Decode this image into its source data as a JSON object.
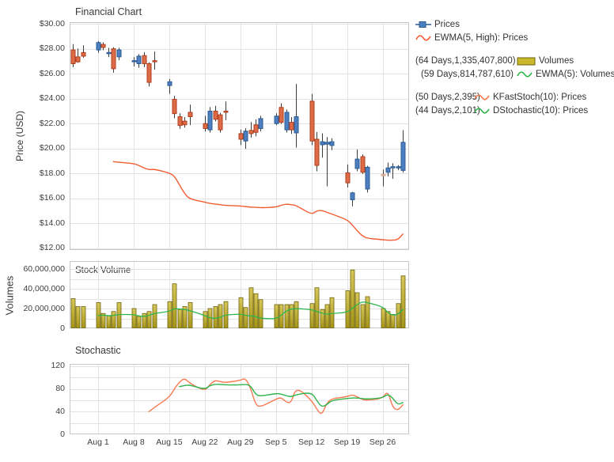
{
  "page_title": "Financial Chart",
  "colors": {
    "candle_up_fill": "#4d7ebf",
    "candle_up_stroke": "#2b5c94",
    "candle_down_fill": "#de6b48",
    "candle_down_stroke": "#b13f1d",
    "candle_pale_fill": "#f0c8b8",
    "candle_pale_stroke": "#dfa28c",
    "wick": "#3c3c3c",
    "ewma_price_line": "#f25c33",
    "kfast_line": "#f87a52",
    "green_line": "#2db54c",
    "bar_fill_top": "#d6c75a",
    "bar_fill_bottom": "#a59417",
    "bar_stroke": "#6e620c",
    "grid": "#e4e4e4",
    "panel_border": "#c8c8c8",
    "text": "#3e3e3e"
  },
  "legend": {
    "rows": [
      {
        "prefix": "",
        "icon": "candlestick-icon",
        "label": "Prices",
        "color": "#4d7ebf",
        "group": 1,
        "gap_before": false
      },
      {
        "prefix": "",
        "icon": "wave-icon",
        "label": "EWMA(5, High): Prices",
        "color": "#f25c33",
        "group": 1,
        "gap_before": false
      },
      {
        "prefix": "(64 Days,1,335,407,800)",
        "icon": "bar-icon",
        "label": "Volumes",
        "color": "#c9b82b",
        "group": 2,
        "gap_before": true
      },
      {
        "prefix": "(59 Days,814,787,610)",
        "icon": "wave-icon",
        "label": "EWMA(5): Volumes",
        "color": "#2db54c",
        "group": 2,
        "gap_before": false
      },
      {
        "prefix": "(50 Days,2,395)",
        "icon": "wave-icon",
        "label": "KFastStoch(10): Prices",
        "color": "#f87a52",
        "group": 3,
        "gap_before": true
      },
      {
        "prefix": "(44 Days,2,101)",
        "icon": "wave-icon",
        "label": "DStochastic(10): Prices",
        "color": "#2db54c",
        "group": 3,
        "gap_before": false
      }
    ]
  },
  "x_axis": {
    "day_span": 67,
    "week_gridline_offsets": [
      5,
      12,
      19,
      26,
      33,
      40,
      47,
      54,
      61
    ],
    "tick_labels": [
      "Aug 1",
      "Aug 8",
      "Aug 15",
      "Aug 22",
      "Aug 29",
      "Sep 5",
      "Sep 12",
      "Sep 19",
      "Sep 26"
    ]
  },
  "chart_data": [
    {
      "type": "candlestick",
      "title": "Financial Chart",
      "ylabel": "Price (USD)",
      "ylim": [
        11.87,
        30.13
      ],
      "grid_step": 2,
      "tick_values": [
        12,
        14,
        16,
        18,
        20,
        22,
        24,
        26,
        28,
        30
      ],
      "tick_labels": [
        "$12.00",
        "$14.00",
        "$16.00",
        "$18.00",
        "$20.00",
        "$22.00",
        "$24.00",
        "$26.00",
        "$28.00",
        "$30.00"
      ],
      "series_names": [
        "Prices",
        "EWMA(5, High): Prices"
      ],
      "candles_format": [
        "day_offset",
        "open",
        "high",
        "low",
        "close",
        "optional_pale_flag"
      ],
      "candles": [
        [
          0,
          27.9,
          28.35,
          26.55,
          26.8
        ],
        [
          1,
          27.35,
          28.0,
          26.9,
          26.95
        ],
        [
          2,
          27.7,
          28.25,
          27.3,
          27.4
        ],
        [
          5,
          27.9,
          28.6,
          27.7,
          28.5
        ],
        [
          6,
          28.35,
          28.5,
          27.9,
          28.1
        ],
        [
          7,
          27.65,
          28.05,
          27.35,
          27.7
        ],
        [
          8,
          28.0,
          28.1,
          26.1,
          26.4
        ],
        [
          9,
          27.35,
          28.05,
          27.1,
          27.9
        ],
        [
          12,
          26.95,
          27.3,
          26.6,
          27.05
        ],
        [
          13,
          26.8,
          27.55,
          26.5,
          27.4
        ],
        [
          14,
          27.45,
          27.7,
          26.55,
          26.8
        ],
        [
          15,
          26.8,
          26.9,
          25.0,
          25.3
        ],
        [
          16,
          27.05,
          27.75,
          26.35,
          27.0
        ],
        [
          19,
          25.05,
          25.55,
          24.4,
          25.35
        ],
        [
          20,
          23.95,
          24.2,
          22.45,
          22.8
        ],
        [
          21,
          22.55,
          22.8,
          21.6,
          21.85
        ],
        [
          22,
          22.2,
          22.5,
          21.7,
          21.9
        ],
        [
          23,
          22.9,
          23.5,
          21.9,
          22.55
        ],
        [
          26,
          22.0,
          22.6,
          21.4,
          21.6
        ],
        [
          27,
          21.5,
          23.3,
          21.3,
          23.0
        ],
        [
          28,
          23.0,
          23.4,
          22.2,
          22.35
        ],
        [
          29,
          22.7,
          22.85,
          21.3,
          21.5
        ],
        [
          30,
          23.0,
          23.75,
          22.3,
          22.95
        ],
        [
          33,
          21.2,
          21.5,
          20.3,
          20.75
        ],
        [
          34,
          20.6,
          21.6,
          20.0,
          21.4
        ],
        [
          35,
          21.45,
          22.1,
          20.9,
          21.2
        ],
        [
          36,
          21.9,
          22.3,
          21.0,
          21.3
        ],
        [
          37,
          21.6,
          22.6,
          21.4,
          22.4
        ],
        [
          40,
          22.0,
          22.8,
          21.9,
          22.6
        ],
        [
          41,
          23.3,
          23.6,
          22.0,
          22.1
        ],
        [
          42,
          21.5,
          23.1,
          21.3,
          22.9
        ],
        [
          43,
          22.1,
          22.5,
          21.2,
          21.5
        ],
        [
          44,
          21.25,
          25.15,
          20.1,
          22.55
        ],
        [
          47,
          23.8,
          24.35,
          20.3,
          20.6
        ],
        [
          48,
          20.75,
          21.3,
          18.2,
          18.65
        ],
        [
          49,
          20.3,
          21.2,
          19.3,
          20.55
        ],
        [
          50,
          20.35,
          20.9,
          17.0,
          20.5
        ],
        [
          51,
          20.25,
          20.8,
          19.9,
          20.55
        ],
        [
          54,
          18.05,
          18.7,
          16.9,
          17.25
        ],
        [
          55,
          15.9,
          16.5,
          15.4,
          16.45
        ],
        [
          56,
          18.4,
          19.9,
          18.2,
          19.15
        ],
        [
          57,
          19.35,
          19.5,
          18.0,
          18.1
        ],
        [
          58,
          16.75,
          18.6,
          16.5,
          18.5
        ],
        [
          61,
          17.92,
          18.3,
          17.0,
          17.88,
          "pale"
        ],
        [
          62,
          18.1,
          18.85,
          17.8,
          18.45
        ],
        [
          63,
          18.5,
          18.8,
          17.6,
          18.55
        ],
        [
          64,
          18.5,
          18.65,
          18.3,
          18.55
        ],
        [
          65,
          18.25,
          21.45,
          18.1,
          20.5
        ]
      ],
      "ewma_line": [
        [
          8,
          18.95
        ],
        [
          9,
          18.9
        ],
        [
          12,
          18.8
        ],
        [
          13,
          18.65
        ],
        [
          14,
          18.45
        ],
        [
          15,
          18.3
        ],
        [
          16,
          18.35
        ],
        [
          19,
          18.05
        ],
        [
          20,
          17.8
        ],
        [
          21,
          17.1
        ],
        [
          22,
          16.4
        ],
        [
          23,
          15.95
        ],
        [
          26,
          15.7
        ],
        [
          27,
          15.6
        ],
        [
          28,
          15.55
        ],
        [
          29,
          15.5
        ],
        [
          30,
          15.45
        ],
        [
          33,
          15.4
        ],
        [
          34,
          15.35
        ],
        [
          35,
          15.3
        ],
        [
          36,
          15.3
        ],
        [
          37,
          15.25
        ],
        [
          40,
          15.3
        ],
        [
          41,
          15.45
        ],
        [
          42,
          15.55
        ],
        [
          43,
          15.5
        ],
        [
          44,
          15.45
        ],
        [
          47,
          14.7
        ],
        [
          48,
          15.0
        ],
        [
          49,
          15.05
        ],
        [
          50,
          14.9
        ],
        [
          51,
          14.75
        ],
        [
          54,
          14.3
        ],
        [
          55,
          13.9
        ],
        [
          56,
          13.4
        ],
        [
          57,
          13.0
        ],
        [
          58,
          12.8
        ],
        [
          61,
          12.7
        ],
        [
          62,
          12.65
        ],
        [
          63,
          12.65
        ],
        [
          64,
          12.7
        ],
        [
          65,
          13.15
        ]
      ]
    },
    {
      "type": "bar",
      "title": "Stock Volume",
      "ylabel": "Volumes",
      "ylim": [
        0,
        68
      ],
      "grid_step": 10,
      "values_unit": "millions_of_shares",
      "tick_values": [
        0,
        20,
        40,
        60
      ],
      "tick_labels": [
        "0",
        "20,000,000",
        "40,000,000",
        "60,000,000"
      ],
      "series_names": [
        "Volumes",
        "EWMA(5): Volumes"
      ],
      "bar_day_offsets": [
        0,
        1,
        2,
        5,
        6,
        7,
        8,
        9,
        12,
        13,
        14,
        15,
        16,
        19,
        20,
        21,
        22,
        23,
        26,
        27,
        28,
        29,
        30,
        33,
        34,
        35,
        36,
        37,
        40,
        41,
        42,
        43,
        44,
        47,
        48,
        49,
        50,
        51,
        54,
        55,
        56,
        57,
        58,
        61,
        62,
        63,
        64,
        65
      ],
      "volumes_millions": [
        30,
        22,
        22,
        26,
        15,
        13,
        17,
        26,
        20,
        12,
        15,
        17,
        24,
        27,
        45,
        19,
        22,
        26,
        17,
        20,
        22,
        24,
        27,
        31,
        21,
        41,
        35,
        29,
        24,
        24,
        24,
        24,
        27,
        25,
        41,
        19,
        24,
        31,
        38,
        59,
        36,
        24,
        32,
        20,
        17,
        14,
        25,
        53
      ],
      "ewma_line": [
        [
          5,
          13
        ],
        [
          6,
          13.5
        ],
        [
          7,
          12.5
        ],
        [
          8,
          13
        ],
        [
          9,
          14
        ],
        [
          12,
          14
        ],
        [
          13,
          12.5
        ],
        [
          14,
          12
        ],
        [
          15,
          13
        ],
        [
          16,
          15
        ],
        [
          19,
          17
        ],
        [
          20,
          20
        ],
        [
          21,
          19.5
        ],
        [
          22,
          19
        ],
        [
          23,
          18
        ],
        [
          26,
          13
        ],
        [
          27,
          10.5
        ],
        [
          28,
          10
        ],
        [
          29,
          11
        ],
        [
          30,
          13.5
        ],
        [
          33,
          14.5
        ],
        [
          34,
          13
        ],
        [
          35,
          12.5
        ],
        [
          36,
          12
        ],
        [
          37,
          10
        ],
        [
          40,
          9.5
        ],
        [
          41,
          13
        ],
        [
          42,
          17.5
        ],
        [
          43,
          19.5
        ],
        [
          44,
          20
        ],
        [
          47,
          19
        ],
        [
          48,
          17
        ],
        [
          49,
          15.5
        ],
        [
          50,
          14
        ],
        [
          51,
          15
        ],
        [
          54,
          16
        ],
        [
          55,
          20
        ],
        [
          56,
          24
        ],
        [
          57,
          27
        ],
        [
          58,
          26
        ],
        [
          61,
          22
        ],
        [
          62,
          16
        ],
        [
          63,
          13
        ],
        [
          64,
          14
        ],
        [
          65,
          19
        ]
      ]
    },
    {
      "type": "line",
      "title": "Stochastic",
      "ylabel": "",
      "ylim": [
        0,
        124
      ],
      "grid_step": 20,
      "tick_values": [
        0,
        40,
        80,
        120
      ],
      "tick_labels": [
        "0",
        "40",
        "80",
        "120"
      ],
      "series": [
        {
          "name": "KFastStoch(10): Prices",
          "color_key": "kfast_line",
          "points": [
            [
              15,
              40
            ],
            [
              16,
              47
            ],
            [
              19,
              65
            ],
            [
              20,
              80
            ],
            [
              21,
              92
            ],
            [
              22,
              99
            ],
            [
              23,
              90
            ],
            [
              26,
              76
            ],
            [
              27,
              88
            ],
            [
              28,
              95
            ],
            [
              29,
              93
            ],
            [
              30,
              91
            ],
            [
              33,
              95
            ],
            [
              34,
              99
            ],
            [
              35,
              82
            ],
            [
              36,
              52
            ],
            [
              37,
              48
            ],
            [
              40,
              62
            ],
            [
              41,
              65
            ],
            [
              42,
              57
            ],
            [
              43,
              55
            ],
            [
              44,
              84
            ],
            [
              47,
              60
            ],
            [
              48,
              45
            ],
            [
              49,
              33
            ],
            [
              50,
              55
            ],
            [
              51,
              63
            ],
            [
              54,
              66
            ],
            [
              55,
              70
            ],
            [
              56,
              66
            ],
            [
              57,
              61
            ],
            [
              58,
              60
            ],
            [
              61,
              63
            ],
            [
              62,
              77
            ],
            [
              63,
              47
            ],
            [
              64,
              42
            ],
            [
              65,
              52
            ]
          ]
        },
        {
          "name": "DStochastic(10): Prices",
          "color_key": "green_line",
          "points": [
            [
              21,
              84
            ],
            [
              22,
              86
            ],
            [
              23,
              87
            ],
            [
              26,
              79
            ],
            [
              27,
              86
            ],
            [
              28,
              88
            ],
            [
              29,
              88
            ],
            [
              30,
              87
            ],
            [
              33,
              87
            ],
            [
              34,
              88
            ],
            [
              35,
              86
            ],
            [
              36,
              70
            ],
            [
              37,
              67
            ],
            [
              40,
              72
            ],
            [
              41,
              71
            ],
            [
              42,
              68
            ],
            [
              43,
              66
            ],
            [
              44,
              70
            ],
            [
              47,
              74
            ],
            [
              48,
              60
            ],
            [
              49,
              48
            ],
            [
              50,
              52
            ],
            [
              51,
              60
            ],
            [
              54,
              63
            ],
            [
              55,
              64
            ],
            [
              56,
              64
            ],
            [
              57,
              63
            ],
            [
              58,
              62
            ],
            [
              61,
              64
            ],
            [
              62,
              71
            ],
            [
              63,
              64
            ],
            [
              64,
              52
            ],
            [
              65,
              56
            ]
          ]
        }
      ]
    }
  ]
}
